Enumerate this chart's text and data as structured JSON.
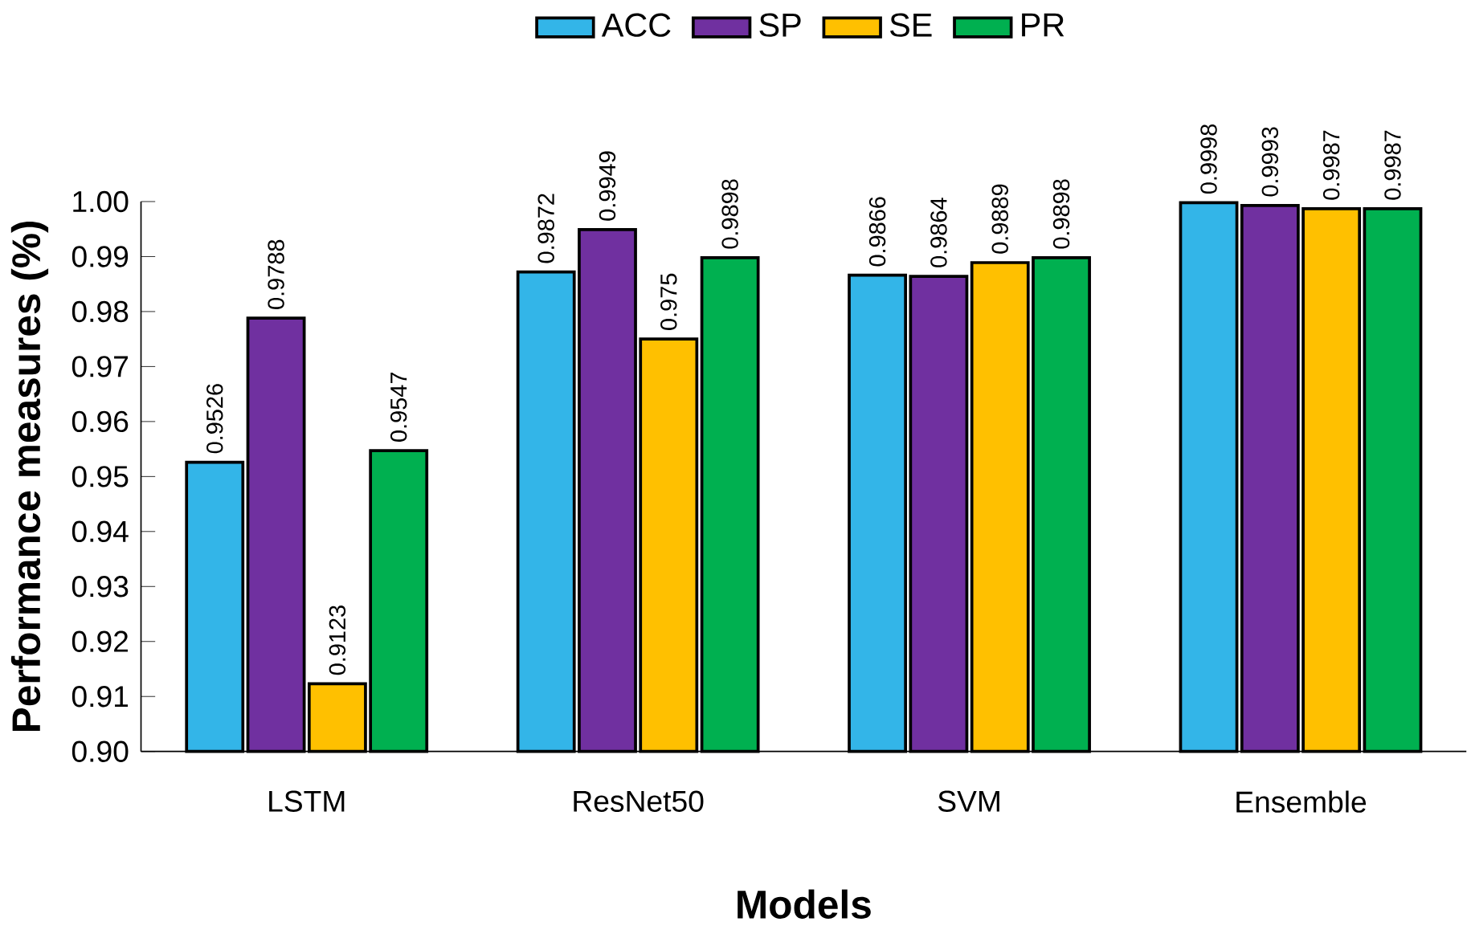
{
  "chart_data": {
    "type": "bar",
    "xlabel": "Models",
    "ylabel": "Performance measures (%)",
    "categories": [
      "LSTM",
      "ResNet50",
      "SVM",
      "Ensemble"
    ],
    "series": [
      {
        "name": "ACC",
        "color": "#33b5e8",
        "values": [
          0.9526,
          0.9872,
          0.9866,
          0.9998
        ]
      },
      {
        "name": "SP",
        "color": "#7030a0",
        "values": [
          0.9788,
          0.9949,
          0.9864,
          0.9993
        ]
      },
      {
        "name": "SE",
        "color": "#ffc000",
        "values": [
          0.9123,
          0.975,
          0.9889,
          0.9987
        ]
      },
      {
        "name": "PR",
        "color": "#00b050",
        "values": [
          0.9547,
          0.9898,
          0.9898,
          0.9987
        ]
      }
    ],
    "ylim": [
      0.9,
      1.0
    ],
    "yticks": [
      {
        "value": 0.9,
        "label": "0.90"
      },
      {
        "value": 0.91,
        "label": "0.91"
      },
      {
        "value": 0.92,
        "label": "0.92"
      },
      {
        "value": 0.93,
        "label": "0.93"
      },
      {
        "value": 0.94,
        "label": "0.94"
      },
      {
        "value": 0.95,
        "label": "0.95"
      },
      {
        "value": 0.96,
        "label": "0.96"
      },
      {
        "value": 0.97,
        "label": "0.97"
      },
      {
        "value": 0.98,
        "label": "0.98"
      },
      {
        "value": 0.99,
        "label": "0.99"
      },
      {
        "value": 1.0,
        "label": "1.00"
      }
    ],
    "data_labels": true,
    "legend": "top",
    "grid": false
  }
}
